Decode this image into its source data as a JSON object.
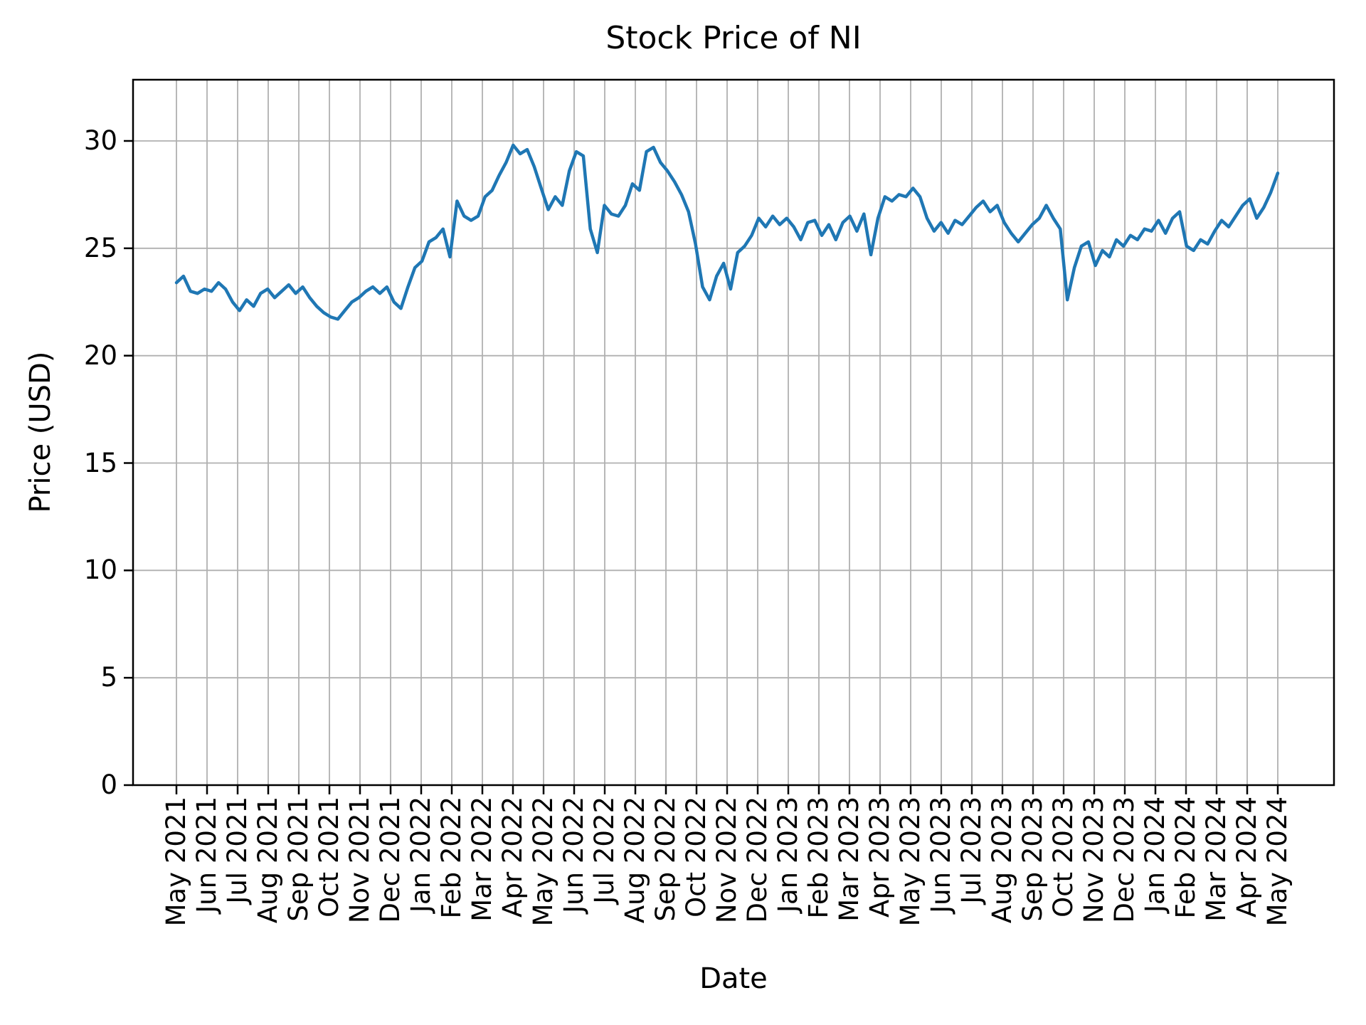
{
  "figure": {
    "background": "#ffffff",
    "text_color": "#000000"
  },
  "chart_data": {
    "type": "line",
    "title": "Stock Price of NI",
    "xlabel": "Date",
    "ylabel": "Price (USD)",
    "x_tick_labels": [
      "May 2021",
      "Jun 2021",
      "Jul 2021",
      "Aug 2021",
      "Sep 2021",
      "Oct 2021",
      "Nov 2021",
      "Dec 2021",
      "Jan 2022",
      "Feb 2022",
      "Mar 2022",
      "Apr 2022",
      "May 2022",
      "Jun 2022",
      "Jul 2022",
      "Aug 2022",
      "Sep 2022",
      "Oct 2022",
      "Nov 2022",
      "Dec 2022",
      "Jan 2023",
      "Feb 2023",
      "Mar 2023",
      "Apr 2023",
      "May 2023",
      "Jun 2023",
      "Jul 2023",
      "Aug 2023",
      "Sep 2023",
      "Oct 2023",
      "Nov 2023",
      "Dec 2023",
      "Jan 2024",
      "Feb 2024",
      "Mar 2024",
      "Apr 2024",
      "May 2024"
    ],
    "y_ticks": [
      0,
      5,
      10,
      15,
      20,
      25,
      30
    ],
    "ylim": [
      0,
      32.9
    ],
    "grid": true,
    "grid_color": "#b0b0b0",
    "axis_color": "#000000",
    "line_color": "#1f77b4",
    "legend": null,
    "series": [
      {
        "name": "NI",
        "cadence": "weekly",
        "start_label": "May 2021",
        "end_label": "May 2024",
        "values": [
          23.4,
          23.7,
          23.0,
          22.9,
          23.1,
          23.0,
          23.4,
          23.1,
          22.5,
          22.1,
          22.6,
          22.3,
          22.9,
          23.1,
          22.7,
          23.0,
          23.3,
          22.9,
          23.2,
          22.7,
          22.3,
          22.0,
          21.8,
          21.7,
          22.1,
          22.5,
          22.7,
          23.0,
          23.2,
          22.9,
          23.2,
          22.5,
          22.2,
          23.2,
          24.1,
          24.4,
          25.3,
          25.5,
          25.9,
          24.6,
          27.2,
          26.5,
          26.3,
          26.5,
          27.4,
          27.7,
          28.4,
          29.0,
          29.8,
          29.4,
          29.6,
          28.8,
          27.8,
          26.8,
          27.4,
          27.0,
          28.6,
          29.5,
          29.3,
          25.9,
          24.8,
          27.0,
          26.6,
          26.5,
          27.0,
          28.0,
          27.7,
          29.5,
          29.7,
          29.0,
          28.6,
          28.1,
          27.5,
          26.7,
          25.2,
          23.2,
          22.6,
          23.7,
          24.3,
          23.1,
          24.8,
          25.1,
          25.6,
          26.4,
          26.0,
          26.5,
          26.1,
          26.4,
          26.0,
          25.4,
          26.2,
          26.3,
          25.6,
          26.1,
          25.4,
          26.2,
          26.5,
          25.8,
          26.6,
          24.7,
          26.4,
          27.4,
          27.2,
          27.5,
          27.4,
          27.8,
          27.4,
          26.4,
          25.8,
          26.2,
          25.7,
          26.3,
          26.1,
          26.5,
          26.9,
          27.2,
          26.7,
          27.0,
          26.2,
          25.7,
          25.3,
          25.7,
          26.1,
          26.4,
          27.0,
          26.4,
          25.9,
          22.6,
          24.1,
          25.1,
          25.3,
          24.2,
          24.9,
          24.6,
          25.4,
          25.1,
          25.6,
          25.4,
          25.9,
          25.8,
          26.3,
          25.7,
          26.4,
          26.7,
          25.1,
          24.9,
          25.4,
          25.2,
          25.8,
          26.3,
          26.0,
          26.5,
          27.0,
          27.3,
          26.4,
          26.9,
          27.6,
          28.5
        ]
      }
    ]
  }
}
